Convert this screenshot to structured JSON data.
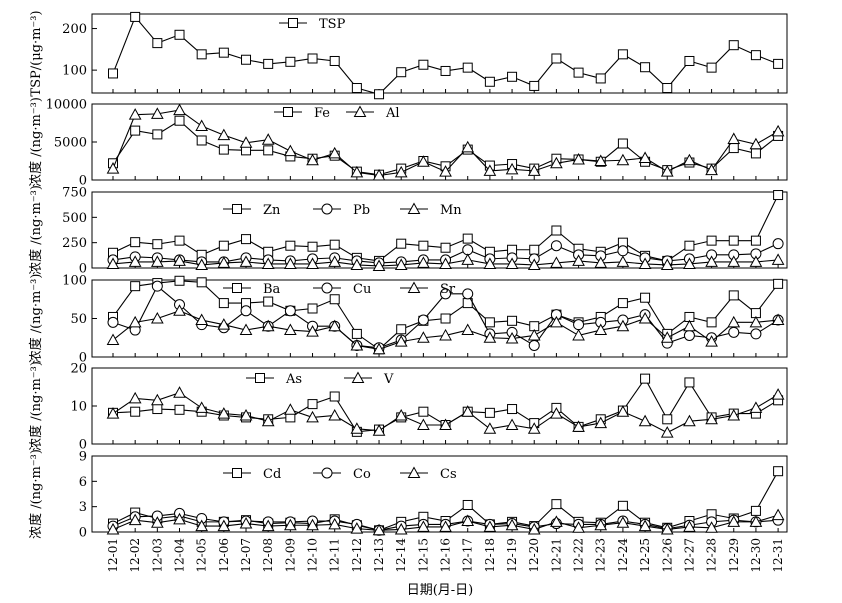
{
  "chart_data": {
    "type": "line",
    "x_categories": [
      "12-01",
      "12-02",
      "12-03",
      "12-04",
      "12-05",
      "12-06",
      "12-07",
      "12-08",
      "12-09",
      "12-10",
      "12-11",
      "12-12",
      "12-13",
      "12-14",
      "12-15",
      "12-16",
      "12-17",
      "12-18",
      "12-19",
      "12-20",
      "12-21",
      "12-22",
      "12-23",
      "12-24",
      "12-25",
      "12-26",
      "12-27",
      "12-28",
      "12-29",
      "12-30",
      "12-31"
    ],
    "xlabel": "日期(月-日)",
    "panels": [
      {
        "ylabel": "TSP/(μg·m⁻³)",
        "yticks": [
          100,
          200
        ],
        "ylim": [
          45,
          235
        ],
        "series": [
          {
            "name": "TSP",
            "marker": "square",
            "values": [
              92,
              228,
              165,
              185,
              138,
              142,
              125,
              115,
              120,
              128,
              122,
              57,
              42,
              95,
              113,
              98,
              106,
              72,
              84,
              62,
              128,
              94,
              80,
              138,
              107,
              57,
              122,
              106,
              160,
              136,
              115
            ]
          }
        ]
      },
      {
        "ylabel": "浓度 /(ng·m⁻³)",
        "yticks": [
          0,
          5000,
          10000
        ],
        "ylim": [
          0,
          10000
        ],
        "series": [
          {
            "name": "Fe",
            "marker": "square",
            "values": [
              2200,
              6500,
              6000,
              7800,
              5200,
              4000,
              3900,
              3900,
              3100,
              2800,
              3200,
              1100,
              700,
              1500,
              2500,
              1800,
              4000,
              1900,
              2100,
              1500,
              2800,
              2700,
              2400,
              4800,
              2400,
              1300,
              2300,
              1500,
              4200,
              3500,
              5800
            ]
          },
          {
            "name": "Al",
            "marker": "triangle",
            "values": [
              1500,
              8600,
              8700,
              9200,
              7100,
              5900,
              4900,
              5300,
              3800,
              2600,
              3500,
              1000,
              600,
              1000,
              2400,
              1100,
              4300,
              1200,
              1400,
              1200,
              2200,
              2700,
              2500,
              2600,
              2900,
              1100,
              2600,
              1300,
              5400,
              4700,
              6400
            ]
          }
        ]
      },
      {
        "ylabel": "浓度 /(ng·m⁻³)",
        "yticks": [
          0,
          250,
          500,
          750
        ],
        "ylim": [
          0,
          750
        ],
        "series": [
          {
            "name": "Zn",
            "marker": "square",
            "values": [
              150,
              255,
              235,
              270,
              130,
              220,
              285,
              160,
              220,
              210,
              230,
              100,
              70,
              240,
              220,
              200,
              290,
              160,
              180,
              180,
              370,
              190,
              160,
              250,
              120,
              70,
              220,
              270,
              270,
              270,
              720
            ]
          },
          {
            "name": "Pb",
            "marker": "circle",
            "values": [
              80,
              110,
              100,
              80,
              60,
              60,
              100,
              80,
              70,
              90,
              100,
              70,
              50,
              60,
              80,
              80,
              180,
              90,
              100,
              90,
              220,
              130,
              120,
              170,
              100,
              70,
              90,
              130,
              130,
              140,
              240
            ]
          },
          {
            "name": "Mn",
            "marker": "triangle",
            "values": [
              40,
              60,
              60,
              70,
              30,
              50,
              60,
              40,
              40,
              40,
              60,
              30,
              20,
              30,
              50,
              40,
              80,
              40,
              40,
              30,
              50,
              70,
              50,
              60,
              40,
              30,
              40,
              60,
              60,
              60,
              80
            ]
          }
        ]
      },
      {
        "ylabel": "浓度 /(ng·m⁻³)",
        "yticks": [
          0,
          50,
          100
        ],
        "ylim": [
          0,
          100
        ],
        "series": [
          {
            "name": "Ba",
            "marker": "square",
            "values": [
              52,
              92,
              96,
              99,
              97,
              70,
              70,
              72,
              60,
              63,
              75,
              30,
              10,
              36,
              47,
              50,
              70,
              45,
              47,
              40,
              55,
              45,
              52,
              70,
              77,
              30,
              52,
              45,
              80,
              57,
              95
            ]
          },
          {
            "name": "Cu",
            "marker": "circle",
            "values": [
              45,
              35,
              92,
              68,
              42,
              38,
              60,
              40,
              60,
              40,
              40,
              15,
              12,
              22,
              48,
              82,
              82,
              30,
              32,
              15,
              55,
              42,
              45,
              48,
              55,
              18,
              28,
              25,
              32,
              30,
              48
            ]
          },
          {
            "name": "Sr",
            "marker": "triangle",
            "values": [
              22,
              45,
              50,
              60,
              48,
              42,
              35,
              40,
              35,
              33,
              40,
              15,
              10,
              20,
              25,
              28,
              35,
              25,
              24,
              28,
              45,
              28,
              35,
              40,
              50,
              25,
              40,
              20,
              45,
              45,
              48
            ]
          }
        ]
      },
      {
        "ylabel": "浓度 /(ng·m⁻³)",
        "yticks": [
          0,
          10,
          20
        ],
        "ylim": [
          0,
          20
        ],
        "series": [
          {
            "name": "As",
            "marker": "square",
            "values": [
              8.2,
              8.5,
              9.2,
              9,
              8.5,
              7.5,
              7,
              6.5,
              7,
              10.5,
              12.5,
              3.2,
              3.8,
              7,
              8.5,
              5,
              8.5,
              8.2,
              9.2,
              5.5,
              9.5,
              4.5,
              6.5,
              8.8,
              17.2,
              6.5,
              16.2,
              7,
              8,
              8,
              11.5
            ]
          },
          {
            "name": "V",
            "marker": "triangle",
            "values": [
              8,
              12,
              11.5,
              13.5,
              9.5,
              8,
              7.5,
              6,
              9,
              7,
              7.5,
              4,
              3.5,
              7.5,
              5,
              5,
              8.5,
              4,
              5,
              4,
              8,
              4.5,
              5.5,
              8.5,
              6,
              3,
              6,
              6.5,
              7.5,
              9.5,
              13
            ]
          }
        ]
      },
      {
        "ylabel": "浓度 /(ng·m⁻³)",
        "yticks": [
          0,
          3,
          6,
          9
        ],
        "ylim": [
          0,
          9
        ],
        "series": [
          {
            "name": "Cd",
            "marker": "square",
            "values": [
              1,
              2.3,
              1.6,
              1.9,
              1.2,
              1.2,
              1.4,
              1,
              1.1,
              1,
              1.5,
              0.8,
              0.2,
              1.2,
              1.8,
              1.3,
              3.2,
              0.9,
              1.2,
              0.7,
              3.3,
              1.2,
              1.1,
              3.1,
              1.1,
              0.5,
              1.3,
              2.1,
              1.6,
              2.5,
              7.2
            ]
          },
          {
            "name": "Co",
            "marker": "circle",
            "values": [
              0.7,
              1.8,
              1.9,
              2.2,
              1.6,
              1.2,
              1.3,
              1.2,
              1.2,
              1.3,
              1.3,
              0.9,
              0.2,
              0.7,
              0.9,
              0.9,
              1.3,
              0.9,
              1,
              0.6,
              1,
              0.9,
              0.9,
              1.3,
              0.9,
              0.4,
              0.8,
              1.2,
              1.4,
              1.2,
              1.4
            ]
          },
          {
            "name": "Cs",
            "marker": "triangle",
            "values": [
              0.3,
              1.4,
              1.1,
              1.5,
              0.7,
              0.7,
              1,
              0.7,
              0.8,
              0.8,
              0.9,
              0.4,
              0.2,
              0.3,
              0.6,
              0.6,
              1.3,
              0.6,
              0.8,
              0.3,
              1.2,
              0.5,
              0.8,
              1.1,
              0.7,
              0.3,
              0.6,
              0.5,
              1.2,
              1.2,
              2
            ]
          }
        ]
      }
    ]
  }
}
